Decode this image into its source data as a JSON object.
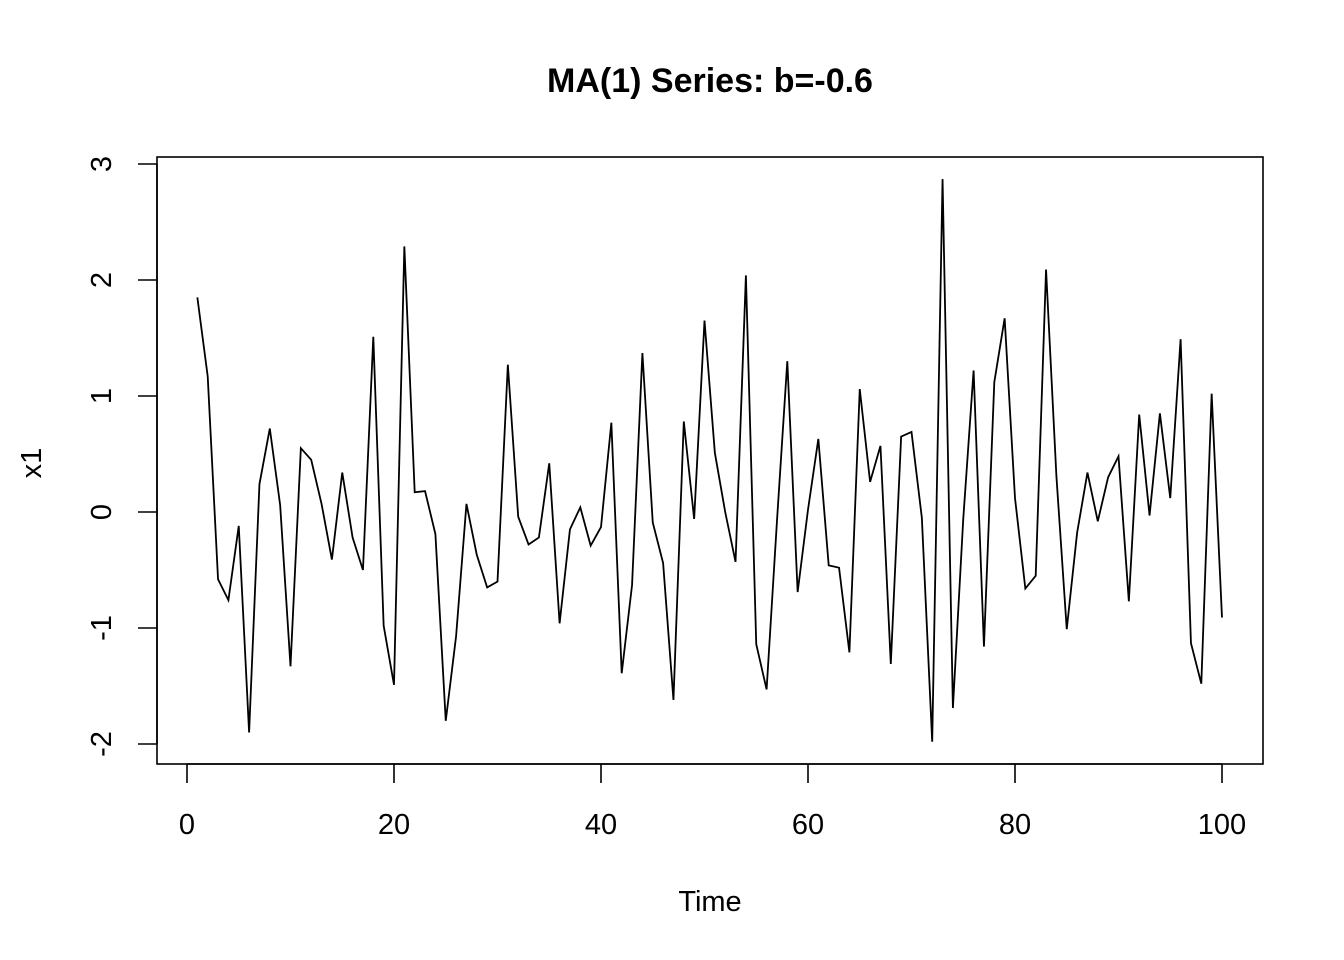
{
  "chart_data": {
    "type": "line",
    "title": "MA(1) Series: b=-0.6",
    "xlabel": "Time",
    "ylabel": "x1",
    "xlim": [
      1,
      100
    ],
    "ylim": [
      -2,
      2.87
    ],
    "xticks": [
      0,
      20,
      40,
      60,
      80,
      100
    ],
    "yticks": [
      -2,
      -1,
      0,
      1,
      2,
      3
    ],
    "xtick_labels": [
      "0",
      "20",
      "40",
      "60",
      "80",
      "100"
    ],
    "ytick_labels": [
      "-2",
      "-1",
      "0",
      "1",
      "2",
      "3"
    ],
    "grid": false,
    "line_color": "#000000",
    "x": [
      1,
      2,
      3,
      4,
      5,
      6,
      7,
      8,
      9,
      10,
      11,
      12,
      13,
      14,
      15,
      16,
      17,
      18,
      19,
      20,
      21,
      22,
      23,
      24,
      25,
      26,
      27,
      28,
      29,
      30,
      31,
      32,
      33,
      34,
      35,
      36,
      37,
      38,
      39,
      40,
      41,
      42,
      43,
      44,
      45,
      46,
      47,
      48,
      49,
      50,
      51,
      52,
      53,
      54,
      55,
      56,
      57,
      58,
      59,
      60,
      61,
      62,
      63,
      64,
      65,
      66,
      67,
      68,
      69,
      70,
      71,
      72,
      73,
      74,
      75,
      76,
      77,
      78,
      79,
      80,
      81,
      82,
      83,
      84,
      85,
      86,
      87,
      88,
      89,
      90,
      91,
      92,
      93,
      94,
      95,
      96,
      97,
      98,
      99,
      100
    ],
    "values": [
      1.85,
      1.17,
      -0.58,
      -0.76,
      -0.12,
      -1.9,
      0.24,
      0.72,
      0.06,
      -1.33,
      0.55,
      0.45,
      0.07,
      -0.41,
      0.34,
      -0.22,
      -0.5,
      1.51,
      -0.98,
      -1.49,
      2.29,
      0.17,
      0.18,
      -0.19,
      -1.8,
      -1.07,
      0.07,
      -0.37,
      -0.65,
      -0.6,
      1.27,
      -0.04,
      -0.28,
      -0.22,
      0.42,
      -0.96,
      -0.15,
      0.04,
      -0.29,
      -0.13,
      0.77,
      -1.39,
      -0.63,
      1.37,
      -0.09,
      -0.44,
      -1.62,
      0.78,
      -0.06,
      1.65,
      0.51,
      0.0,
      -0.43,
      2.04,
      -1.14,
      -1.53,
      -0.08,
      1.3,
      -0.69,
      0.02,
      0.63,
      -0.46,
      -0.48,
      -1.21,
      1.06,
      0.26,
      0.57,
      -1.31,
      0.65,
      0.69,
      -0.05,
      -1.98,
      2.87,
      -1.69,
      -0.06,
      1.22,
      -1.16,
      1.12,
      1.67,
      0.12,
      -0.66,
      -0.55,
      2.09,
      0.31,
      -1.01,
      -0.18,
      0.34,
      -0.08,
      0.3,
      0.48,
      -0.77,
      0.84,
      -0.03,
      0.85,
      0.12,
      1.49,
      -1.13,
      -1.48,
      1.02,
      -0.91
    ]
  }
}
